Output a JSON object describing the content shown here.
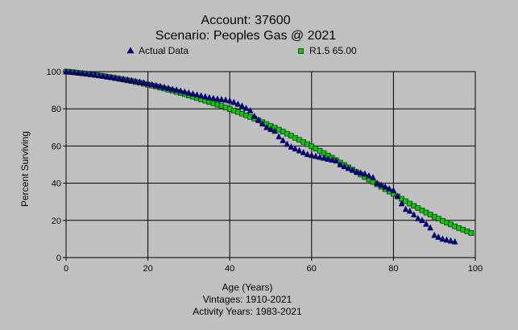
{
  "chart_data": {
    "type": "scatter",
    "title": "Account: 37600",
    "subtitle": "Scenario: Peoples Gas @ 2021",
    "xlabel": "Age (Years)",
    "ylabel": "Percent Surviving",
    "footnotes": [
      "Vintages: 1910-2021",
      "Activity Years: 1983-2021"
    ],
    "xlim": [
      0,
      100
    ],
    "ylim": [
      0,
      100
    ],
    "xticks": [
      "0",
      "20",
      "40",
      "60",
      "80",
      "100"
    ],
    "yticks": [
      "0",
      "20",
      "40",
      "60",
      "80",
      "100"
    ],
    "grid": true,
    "legend_placement": "top",
    "series": [
      {
        "name": "Actual Data",
        "marker": "triangle",
        "color": "#000080",
        "x": [
          0,
          1,
          2,
          3,
          4,
          5,
          6,
          7,
          8,
          9,
          10,
          11,
          12,
          13,
          14,
          15,
          16,
          17,
          18,
          19,
          20,
          21,
          22,
          23,
          24,
          25,
          26,
          27,
          28,
          29,
          30,
          31,
          32,
          33,
          34,
          35,
          36,
          37,
          38,
          39,
          40,
          41,
          42,
          43,
          44,
          45,
          46,
          47,
          48,
          49,
          50,
          51,
          52,
          53,
          54,
          55,
          56,
          57,
          58,
          59,
          60,
          61,
          62,
          63,
          64,
          65,
          66,
          67,
          68,
          69,
          70,
          71,
          72,
          73,
          74,
          75,
          76,
          77,
          78,
          79,
          80,
          81,
          82,
          83,
          84,
          85,
          86,
          87,
          88,
          89,
          90,
          91,
          92,
          93,
          94,
          95
        ],
        "y": [
          100,
          99.8,
          99.6,
          99.3,
          99.1,
          98.8,
          98.6,
          98.3,
          98,
          97.7,
          97.4,
          97,
          96.7,
          96.3,
          96,
          95.6,
          95.2,
          94.8,
          94.4,
          94,
          93.5,
          93.1,
          92.6,
          92.1,
          91.6,
          91.1,
          90.6,
          90.1,
          89.6,
          89.1,
          88.5,
          88,
          87.5,
          87,
          86.5,
          86,
          85.6,
          85.3,
          85,
          84.7,
          84.3,
          83.5,
          82.5,
          81.5,
          80.3,
          79,
          76,
          74,
          72,
          70,
          69,
          68,
          65,
          63,
          61,
          59.5,
          58.5,
          57.5,
          56.5,
          55.5,
          55,
          54.5,
          54,
          53.5,
          53,
          52.5,
          52,
          50,
          49,
          48,
          47,
          46,
          45.5,
          45,
          44,
          43,
          40,
          39,
          38,
          37,
          36,
          33,
          29,
          26,
          25,
          23,
          21,
          20,
          18,
          16,
          12,
          11,
          10,
          9.5,
          9,
          8.5
        ]
      },
      {
        "name": "R1.5 65.00",
        "marker": "square",
        "color": "#00cc00",
        "x": [
          0,
          1,
          2,
          3,
          4,
          5,
          6,
          7,
          8,
          9,
          10,
          11,
          12,
          13,
          14,
          15,
          16,
          17,
          18,
          19,
          20,
          21,
          22,
          23,
          24,
          25,
          26,
          27,
          28,
          29,
          30,
          31,
          32,
          33,
          34,
          35,
          36,
          37,
          38,
          39,
          40,
          41,
          42,
          43,
          44,
          45,
          46,
          47,
          48,
          49,
          50,
          51,
          52,
          53,
          54,
          55,
          56,
          57,
          58,
          59,
          60,
          61,
          62,
          63,
          64,
          65,
          66,
          67,
          68,
          69,
          70,
          71,
          72,
          73,
          74,
          75,
          76,
          77,
          78,
          79,
          80,
          81,
          82,
          83,
          84,
          85,
          86,
          87,
          88,
          89,
          90,
          91,
          92,
          93,
          94,
          95,
          96,
          97,
          98,
          99
        ],
        "y": [
          100,
          99.8,
          99.6,
          99.3,
          99.1,
          98.8,
          98.5,
          98.2,
          97.9,
          97.6,
          97.2,
          96.9,
          96.5,
          96.1,
          95.7,
          95.3,
          94.9,
          94.4,
          94,
          93.5,
          93,
          92.5,
          92,
          91.4,
          90.9,
          90.3,
          89.7,
          89.1,
          88.5,
          87.9,
          87.2,
          86.5,
          85.8,
          85.1,
          84.4,
          83.7,
          83,
          82.2,
          81.5,
          80.7,
          79.9,
          79.1,
          78.3,
          77.4,
          76.5,
          75.6,
          74.7,
          73.8,
          72.8,
          71.8,
          70.8,
          69.8,
          68.8,
          67.7,
          66.6,
          65.5,
          64.4,
          63.3,
          62.2,
          61,
          59.8,
          58.6,
          57.4,
          56.2,
          54.9,
          53.7,
          52.4,
          51.1,
          49.8,
          48.5,
          47.2,
          45.9,
          44.6,
          43.3,
          42,
          40.7,
          39.4,
          38.1,
          36.8,
          35.5,
          34.2,
          32.9,
          31.6,
          30.3,
          29,
          27.8,
          26.6,
          25.4,
          24.2,
          23.1,
          22,
          20.9,
          19.8,
          18.8,
          17.8,
          16.8,
          15.9,
          15,
          14.1,
          13.2
        ]
      }
    ]
  }
}
